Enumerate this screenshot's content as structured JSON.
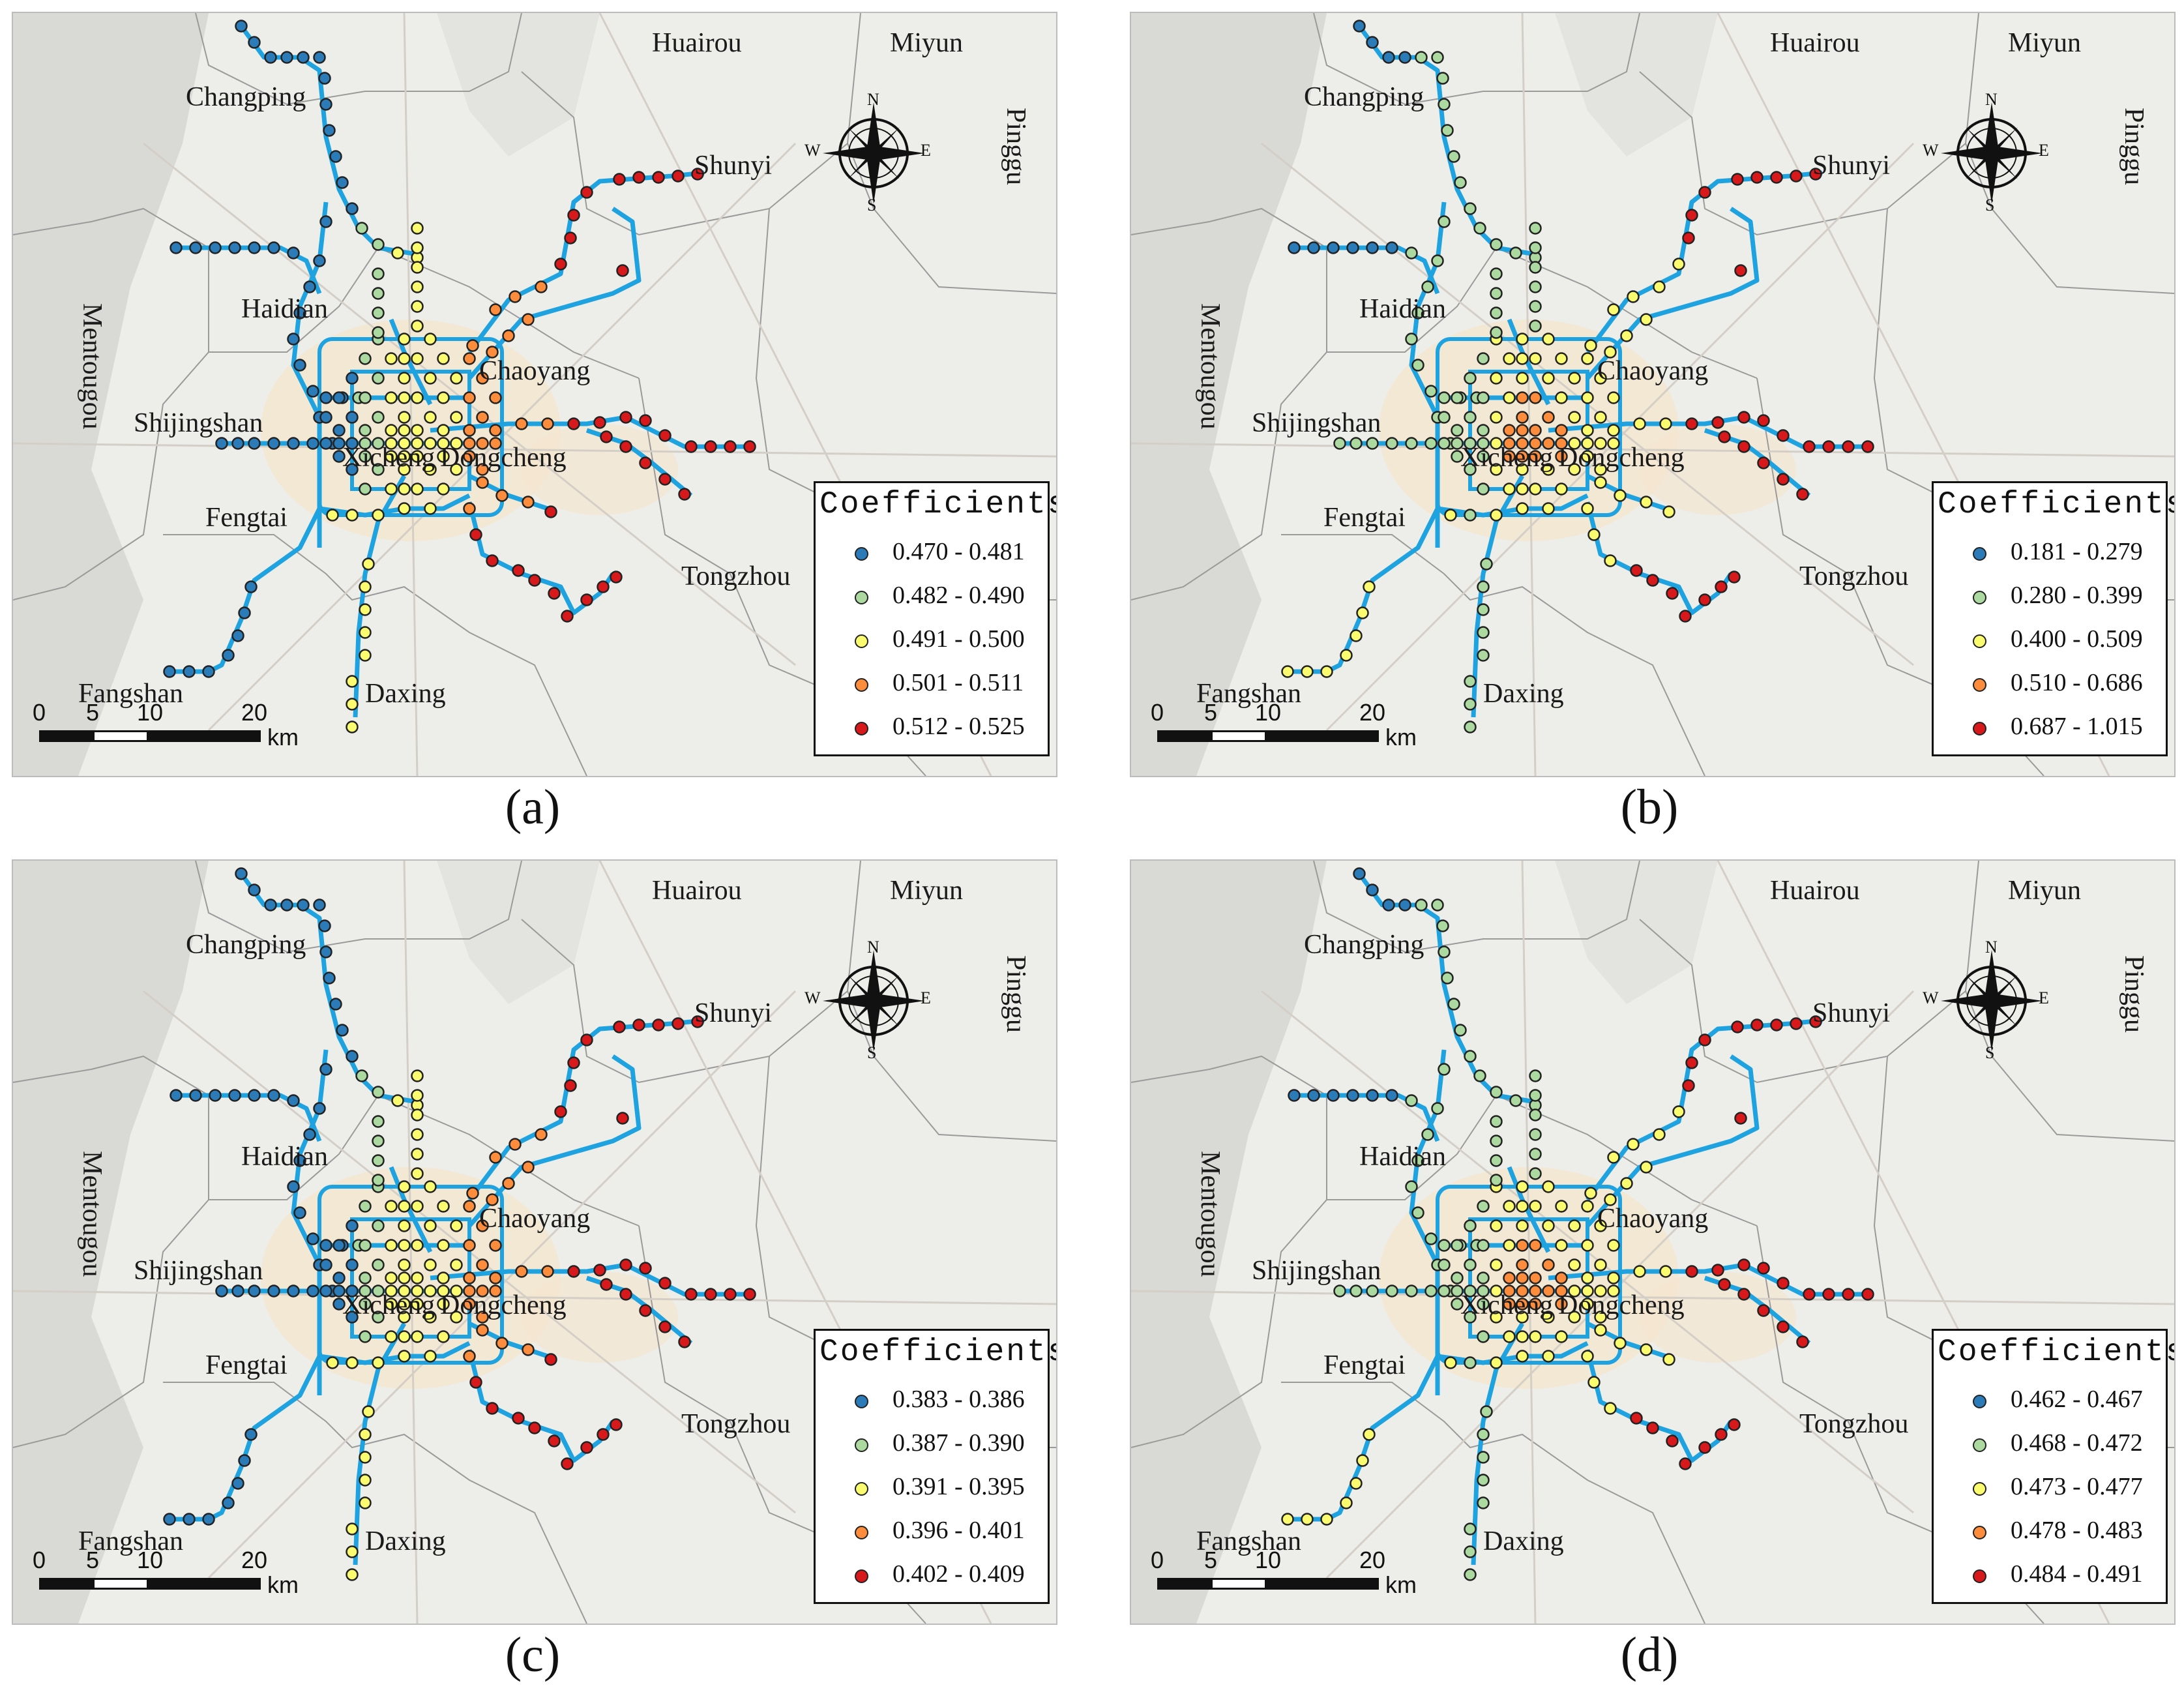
{
  "figure": {
    "panels": [
      {
        "caption": "(a)",
        "legend_title": "Coefficients",
        "classes": [
          "0.470 - 0.481",
          "0.482 - 0.490",
          "0.491 - 0.500",
          "0.501 - 0.511",
          "0.512 - 0.525"
        ],
        "pattern": "a"
      },
      {
        "caption": "(b)",
        "legend_title": "Coefficients",
        "classes": [
          "0.181 - 0.279",
          "0.280 - 0.399",
          "0.400 - 0.509",
          "0.510 - 0.686",
          "0.687 - 1.015"
        ],
        "pattern": "b"
      },
      {
        "caption": "(c)",
        "legend_title": "Coefficients",
        "classes": [
          "0.383 - 0.386",
          "0.387 - 0.390",
          "0.391 - 0.395",
          "0.396 - 0.401",
          "0.402 - 0.409"
        ],
        "pattern": "a"
      },
      {
        "caption": "(d)",
        "legend_title": "Coefficients",
        "classes": [
          "0.462 - 0.467",
          "0.468 - 0.472",
          "0.473 - 0.477",
          "0.478 - 0.483",
          "0.484 - 0.491"
        ],
        "pattern": "b"
      }
    ],
    "class_colors": [
      "#2b7bb9",
      "#abd9a0",
      "#fbfb70",
      "#fd8d3c",
      "#d7191c"
    ],
    "line_color": "#1fa3e0",
    "districts": [
      "Huairou",
      "Miyun",
      "Changping",
      "Shunyi",
      "Pinggu",
      "Haidian",
      "Mentougou",
      "Chaoyang",
      "Shijingshan",
      "Xicheng",
      "Dongcheng",
      "Fengtai",
      "Tongzhou",
      "Fangshan",
      "Daxing"
    ],
    "scale_bar": {
      "ticks": [
        "0",
        "5",
        "10",
        "20"
      ],
      "unit": "km"
    },
    "compass": {
      "n": "N",
      "s": "S",
      "e": "E",
      "w": "W"
    }
  }
}
